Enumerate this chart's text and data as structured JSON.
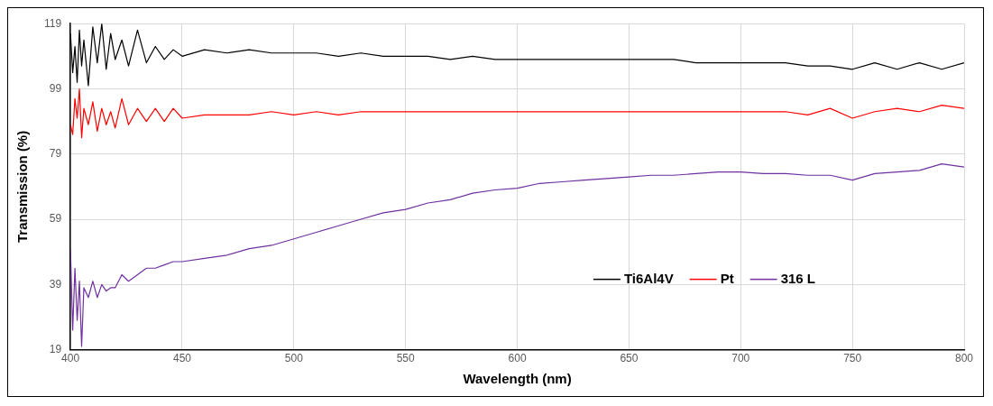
{
  "chart_data": {
    "type": "line",
    "xlabel": "Wavelength (nm)",
    "ylabel": "Transmission (%)",
    "x": [
      400,
      401,
      402,
      403,
      404,
      405,
      406,
      408,
      410,
      412,
      414,
      416,
      418,
      420,
      423,
      426,
      430,
      434,
      438,
      442,
      446,
      450,
      460,
      470,
      480,
      490,
      500,
      510,
      520,
      530,
      540,
      550,
      560,
      570,
      580,
      590,
      600,
      610,
      620,
      630,
      640,
      650,
      660,
      670,
      680,
      690,
      700,
      710,
      720,
      730,
      740,
      750,
      760,
      770,
      780,
      790,
      800
    ],
    "series": [
      {
        "name": "Ti6Al4V",
        "color": "#000000",
        "values": [
          116,
          104,
          112,
          101,
          117,
          106,
          114,
          100,
          118,
          107,
          119,
          105,
          116,
          108,
          114,
          106,
          117,
          107,
          112,
          108,
          111,
          109,
          111,
          110,
          111,
          110,
          110,
          110,
          109,
          110,
          109,
          109,
          109,
          108,
          109,
          108,
          108,
          108,
          108,
          108,
          108,
          108,
          108,
          108,
          107,
          107,
          107,
          107,
          107,
          106,
          106,
          105,
          107,
          105,
          107,
          105,
          107
        ]
      },
      {
        "name": "Pt",
        "color": "#ff0000",
        "values": [
          88,
          85,
          96,
          90,
          99,
          84,
          93,
          88,
          95,
          86,
          93,
          88,
          92,
          87,
          96,
          88,
          93,
          89,
          93,
          89,
          93,
          90,
          91,
          91,
          91,
          92,
          91,
          92,
          91,
          92,
          92,
          92,
          92,
          92,
          92,
          92,
          92,
          92,
          92,
          92,
          92,
          92,
          92,
          92,
          92,
          92,
          92,
          92,
          92,
          91,
          93,
          90,
          92,
          93,
          92,
          94,
          93
        ]
      },
      {
        "name": "316 L",
        "color": "#7030a0",
        "values": [
          50,
          25,
          44,
          28,
          40,
          20,
          38,
          35,
          40,
          35,
          39,
          37,
          38,
          38,
          42,
          40,
          42,
          44,
          44,
          45,
          46,
          46,
          47,
          48,
          50,
          51,
          53,
          55,
          57,
          59,
          61,
          62,
          64,
          65,
          67,
          68,
          68.5,
          70,
          70.5,
          71,
          71.5,
          72,
          72.5,
          72.5,
          73,
          73.5,
          73.5,
          73,
          73,
          72.5,
          72.5,
          71,
          73,
          73.5,
          74,
          76,
          75
        ]
      }
    ],
    "xlim": [
      400,
      800
    ],
    "xticks": [
      400,
      450,
      500,
      550,
      600,
      650,
      700,
      750,
      800
    ],
    "ylim": [
      19,
      119
    ],
    "yticks": [
      19,
      39,
      59,
      79,
      99,
      119
    ],
    "grid": true,
    "legend": "bottom right",
    "marker": "none",
    "line_style": "solid"
  }
}
